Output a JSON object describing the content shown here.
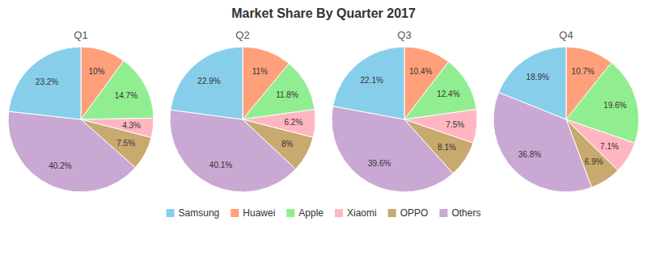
{
  "title": "Market Share By Quarter 2017",
  "legend": "bottom",
  "series": [
    {
      "name": "Samsung",
      "color": "#87CEEB"
    },
    {
      "name": "Huawei",
      "color": "#FFA07A"
    },
    {
      "name": "Apple",
      "color": "#90EE90"
    },
    {
      "name": "Xiaomi",
      "color": "#FFB6C1"
    },
    {
      "name": "OPPO",
      "color": "#C8A96E"
    },
    {
      "name": "Others",
      "color": "#C9A8D4"
    }
  ],
  "chart_data": [
    {
      "type": "pie",
      "title": "Q1",
      "categories": [
        "Huawei",
        "Apple",
        "Xiaomi",
        "OPPO",
        "Others",
        "Samsung"
      ],
      "values": [
        10.0,
        14.7,
        4.3,
        7.5,
        40.2,
        23.2
      ],
      "value_labels": [
        "10%",
        "14.7%",
        "4.3%",
        "7.5%",
        "40.2%",
        "23.2%"
      ],
      "colors": [
        "#FFA07A",
        "#90EE90",
        "#FFB6C1",
        "#C8A96E",
        "#C9A8D4",
        "#87CEEB"
      ],
      "data_labels": true
    },
    {
      "type": "pie",
      "title": "Q2",
      "categories": [
        "Huawei",
        "Apple",
        "Xiaomi",
        "OPPO",
        "Others",
        "Samsung"
      ],
      "values": [
        11.0,
        11.8,
        6.2,
        8.0,
        40.1,
        22.9
      ],
      "value_labels": [
        "11%",
        "11.8%",
        "6.2%",
        "8%",
        "40.1%",
        "22.9%"
      ],
      "colors": [
        "#FFA07A",
        "#90EE90",
        "#FFB6C1",
        "#C8A96E",
        "#C9A8D4",
        "#87CEEB"
      ],
      "data_labels": true
    },
    {
      "type": "pie",
      "title": "Q3",
      "categories": [
        "Huawei",
        "Apple",
        "Xiaomi",
        "OPPO",
        "Others",
        "Samsung"
      ],
      "values": [
        10.4,
        12.4,
        7.5,
        8.1,
        39.6,
        22.1
      ],
      "value_labels": [
        "10.4%",
        "12.4%",
        "7.5%",
        "8.1%",
        "39.6%",
        "22.1%"
      ],
      "colors": [
        "#FFA07A",
        "#90EE90",
        "#FFB6C1",
        "#C8A96E",
        "#C9A8D4",
        "#87CEEB"
      ],
      "data_labels": true
    },
    {
      "type": "pie",
      "title": "Q4",
      "categories": [
        "Huawei",
        "Apple",
        "Xiaomi",
        "OPPO",
        "Others",
        "Samsung"
      ],
      "values": [
        10.7,
        19.6,
        7.1,
        6.9,
        36.8,
        18.9
      ],
      "value_labels": [
        "10.7%",
        "19.6%",
        "7.1%",
        "6.9%",
        "36.8%",
        "18.9%"
      ],
      "colors": [
        "#FFA07A",
        "#90EE90",
        "#FFB6C1",
        "#C8A96E",
        "#C9A8D4",
        "#87CEEB"
      ],
      "data_labels": true
    }
  ]
}
